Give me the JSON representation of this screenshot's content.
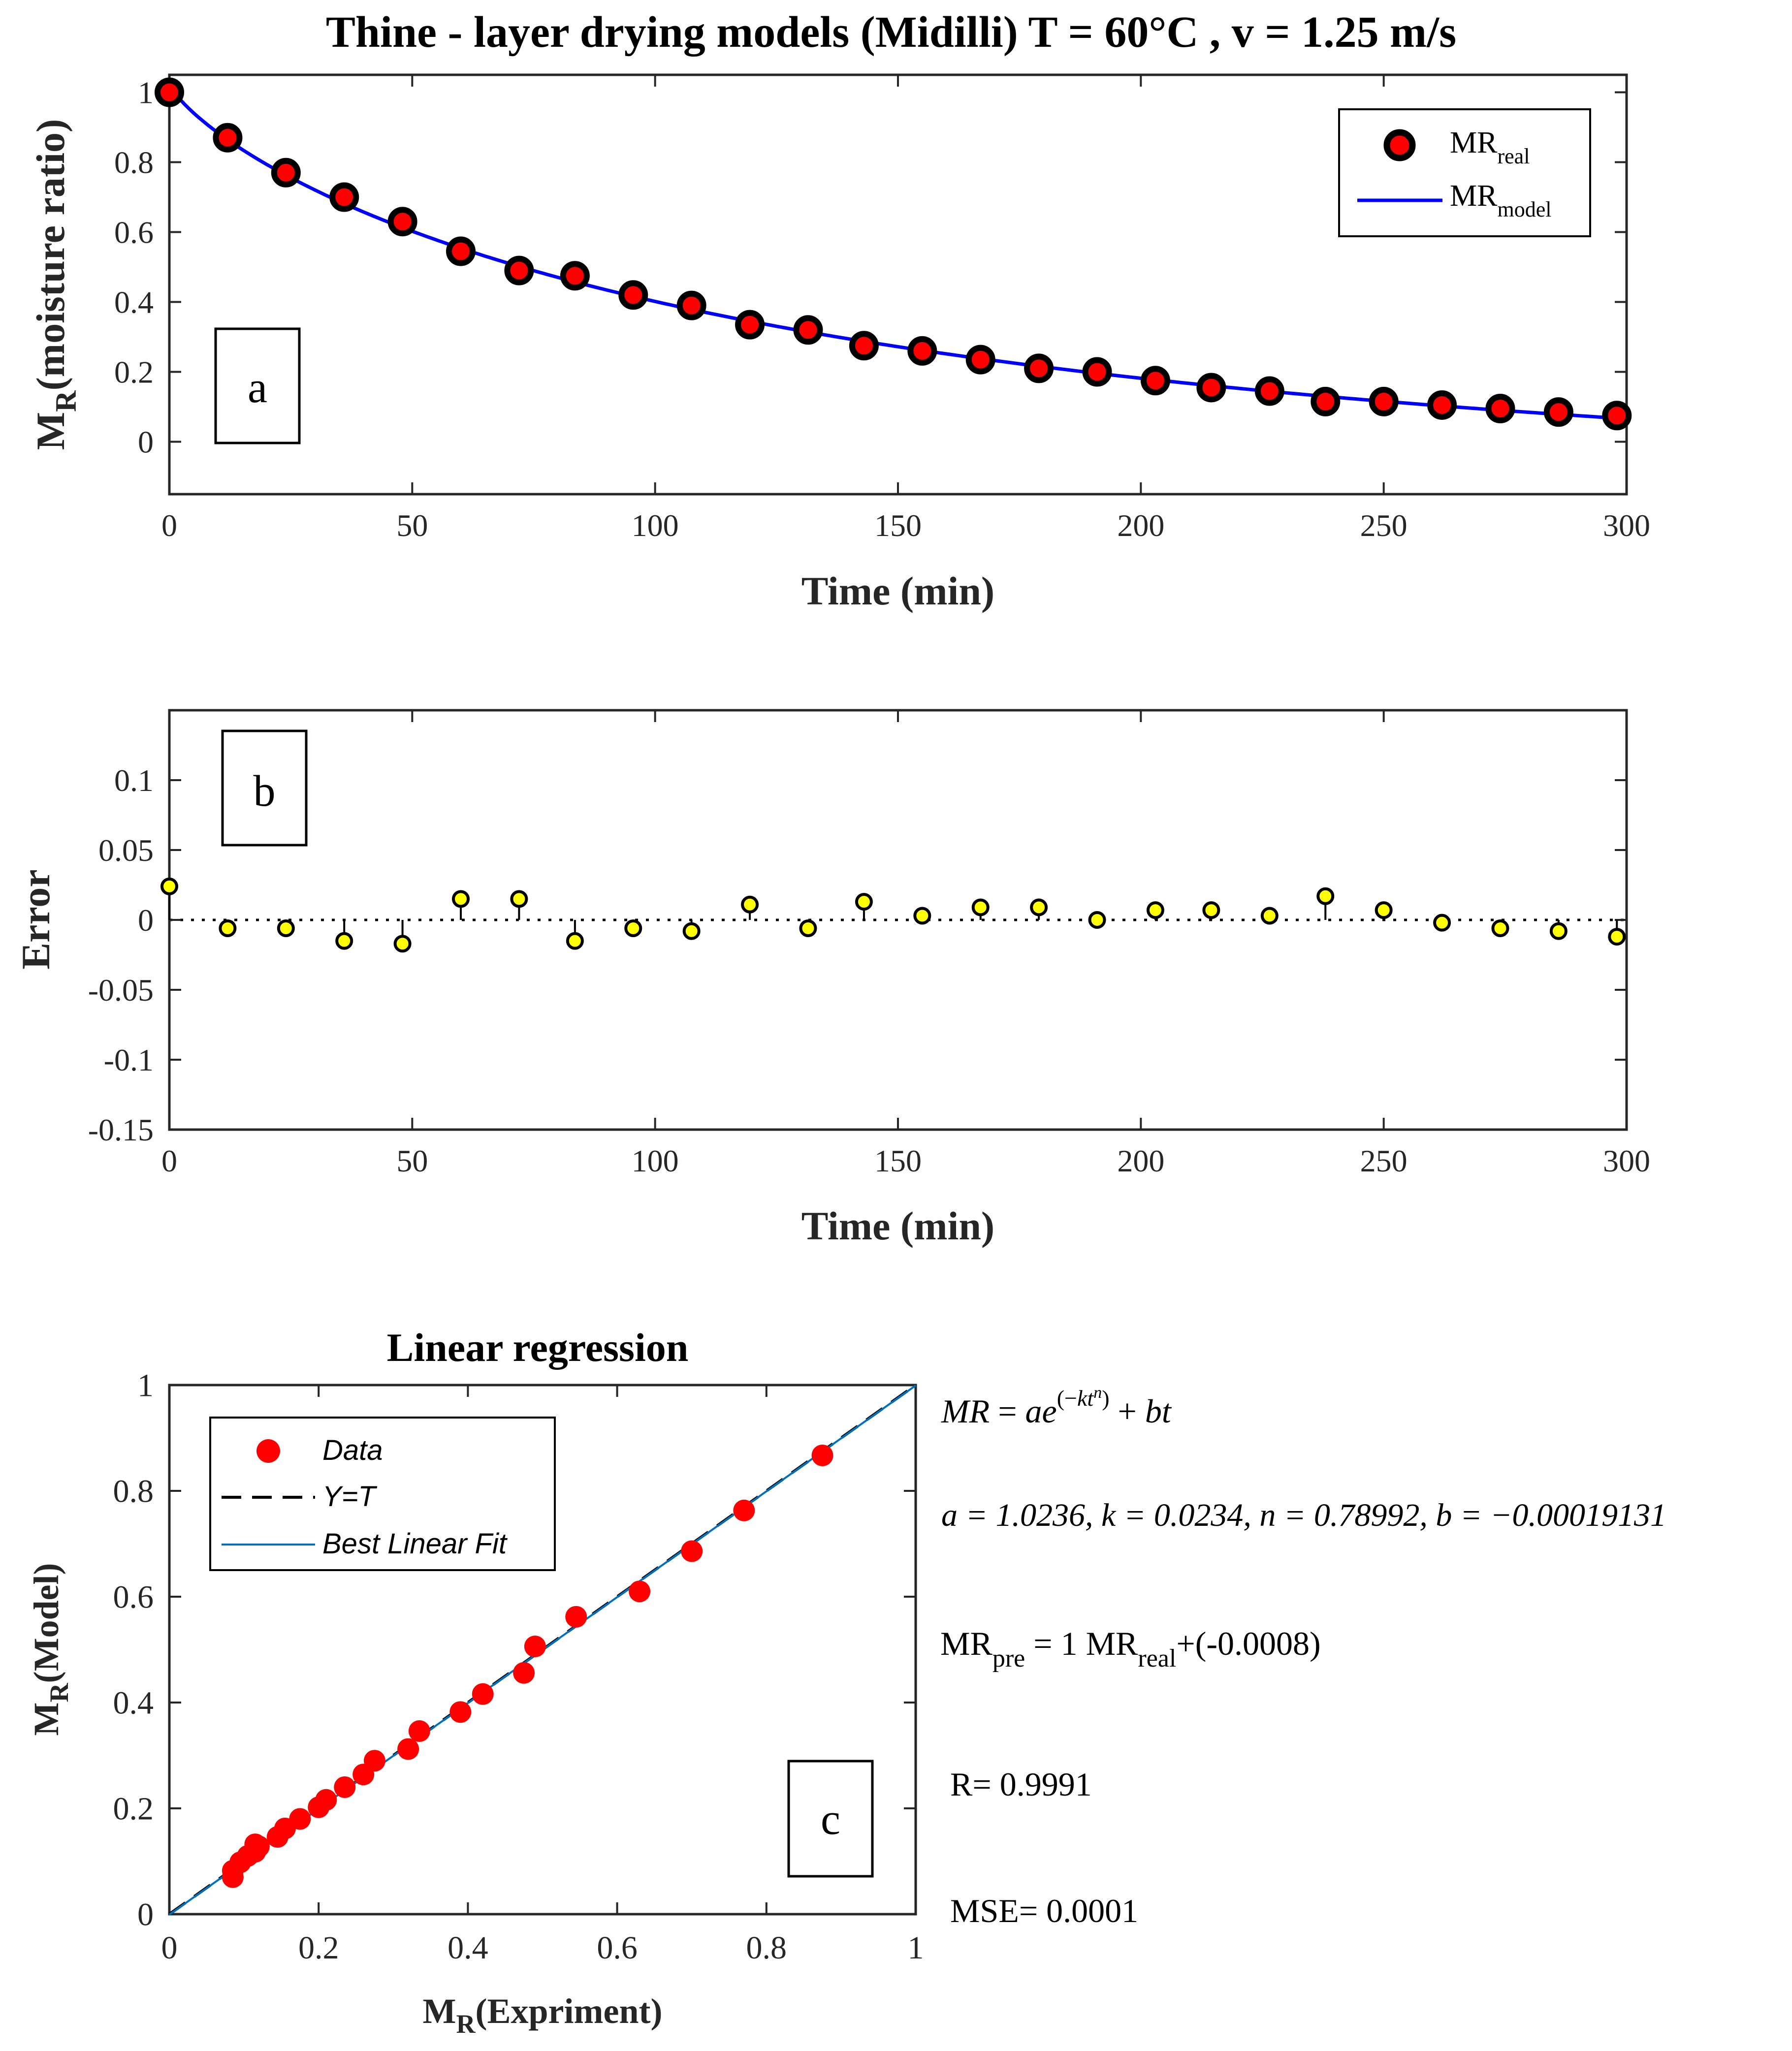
{
  "figure": {
    "title": "Thine - layer drying models (Midilli) T = 60°C , v = 1.25 m/s"
  },
  "colors": {
    "marker_fill": "#ff0000",
    "marker_edge": "#000000",
    "model_line": "#0000ff",
    "error_marker": "#ffff00",
    "fit_line": "#0072bd",
    "identity_line": "#000000"
  },
  "chart_data": [
    {
      "id": "a",
      "type": "line",
      "panel_label": "a",
      "xlabel": "Time (min)",
      "ylabel": {
        "main": "M",
        "sub": "R",
        "rest": "(moisture ratio)"
      },
      "xlim": [
        0,
        300
      ],
      "ylim": [
        -0.15,
        1.05
      ],
      "xticks": [
        0,
        50,
        100,
        150,
        200,
        250,
        300
      ],
      "xtick_labels": [
        "0",
        "50",
        "100",
        "150",
        "200",
        "250",
        "300"
      ],
      "yticks": [
        0,
        0.2,
        0.4,
        0.6,
        0.8,
        1
      ],
      "ytick_labels": [
        "0",
        "0.2",
        "0.4",
        "0.6",
        "0.8",
        "1"
      ],
      "legend": [
        {
          "main": "MR",
          "sub": "real"
        },
        {
          "main": "MR",
          "sub": "model"
        }
      ],
      "series": [
        {
          "name": "MR_real",
          "style": "markers",
          "x": [
            0,
            12,
            24,
            36,
            48,
            60,
            72,
            83.5,
            95.5,
            107.5,
            119.5,
            131.5,
            143,
            155,
            167,
            179,
            191,
            203,
            214.5,
            226.5,
            238,
            250,
            262,
            274,
            286,
            298
          ],
          "y": [
            1.0,
            0.87,
            0.77,
            0.7,
            0.63,
            0.545,
            0.49,
            0.475,
            0.42,
            0.39,
            0.335,
            0.32,
            0.275,
            0.26,
            0.235,
            0.21,
            0.2,
            0.175,
            0.155,
            0.145,
            0.115,
            0.115,
            0.105,
            0.095,
            0.085,
            0.075
          ]
        },
        {
          "name": "MR_model",
          "style": "line",
          "model": {
            "a": 1.0236,
            "k": 0.0234,
            "n": 0.78992,
            "b": -0.00019131
          }
        }
      ]
    },
    {
      "id": "b",
      "type": "scatter",
      "panel_label": "b",
      "xlabel": "Time (min)",
      "ylabel": "Error",
      "xlim": [
        0,
        300
      ],
      "ylim": [
        -0.15,
        0.15
      ],
      "xticks": [
        0,
        50,
        100,
        150,
        200,
        250,
        300
      ],
      "xtick_labels": [
        "0",
        "50",
        "100",
        "150",
        "200",
        "250",
        "300"
      ],
      "yticks": [
        -0.15,
        -0.1,
        -0.05,
        0,
        0.05,
        0.1
      ],
      "ytick_labels": [
        "-0.15",
        "-0.1",
        "-0.05",
        "0",
        "0.05",
        "0.1"
      ],
      "series": [
        {
          "name": "Error",
          "style": "stem",
          "x": [
            0,
            12,
            24,
            36,
            48,
            60,
            72,
            83.5,
            95.5,
            107.5,
            119.5,
            131.5,
            143,
            155,
            167,
            179,
            191,
            203,
            214.5,
            226.5,
            238,
            250,
            262,
            274,
            286,
            298
          ],
          "y": [
            0.024,
            -0.006,
            -0.006,
            -0.015,
            -0.017,
            0.015,
            0.015,
            -0.015,
            -0.006,
            -0.008,
            0.011,
            -0.006,
            0.013,
            0.003,
            0.009,
            0.009,
            0.0,
            0.007,
            0.007,
            0.003,
            0.017,
            0.007,
            -0.002,
            -0.006,
            -0.008,
            -0.012
          ]
        }
      ]
    },
    {
      "id": "c",
      "type": "scatter",
      "panel_label": "c",
      "title": "Linear regression",
      "xlabel": {
        "main": "M",
        "sub": "R",
        "rest": "(Expriment)"
      },
      "ylabel": {
        "main": "M",
        "sub": "R",
        "rest": "(Model)"
      },
      "xlim": [
        0,
        1
      ],
      "ylim": [
        0,
        1
      ],
      "xticks": [
        0,
        0.2,
        0.4,
        0.6,
        0.8,
        1
      ],
      "xtick_labels": [
        "0",
        "0.2",
        "0.4",
        "0.6",
        "0.8",
        "1"
      ],
      "yticks": [
        0,
        0.2,
        0.4,
        0.6,
        0.8,
        1
      ],
      "ytick_labels": [
        "0",
        "0.2",
        "0.4",
        "0.6",
        "0.8",
        "1"
      ],
      "legend": [
        "Data",
        "Y=T",
        "Best Linear Fit"
      ],
      "series": [
        {
          "name": "Data",
          "style": "markers",
          "x": [
            0.875,
            0.77,
            0.7,
            0.63,
            0.545,
            0.49,
            0.475,
            0.42,
            0.39,
            0.335,
            0.32,
            0.275,
            0.26,
            0.235,
            0.21,
            0.2,
            0.175,
            0.155,
            0.145,
            0.115,
            0.115,
            0.105,
            0.095,
            0.085,
            0.085,
            0.12
          ],
          "y": [
            0.867,
            0.763,
            0.686,
            0.61,
            0.562,
            0.506,
            0.456,
            0.416,
            0.382,
            0.346,
            0.312,
            0.29,
            0.264,
            0.24,
            0.216,
            0.202,
            0.18,
            0.162,
            0.146,
            0.132,
            0.118,
            0.11,
            0.098,
            0.082,
            0.07,
            0.128
          ]
        },
        {
          "name": "Y=T",
          "style": "dashed",
          "x": [
            0,
            1
          ],
          "y": [
            0,
            1
          ]
        },
        {
          "name": "Best Linear Fit",
          "style": "line",
          "x": [
            0,
            1
          ],
          "y": [
            -0.0008,
            0.9992
          ]
        }
      ]
    }
  ],
  "annotations": {
    "equation": "MR = ae^(−kt^n) + bt",
    "params": "a = 1.0236, k = 0.0234, n = 0.78992, b = −0.00019131",
    "fit": {
      "lhs": "MR",
      "lhs_sub": "pre",
      "mid": " = 1 MR",
      "mid_sub": "real",
      "rhs": "+(-0.0008)"
    },
    "r": "R= 0.9991",
    "mse": "MSE= 0.0001"
  }
}
